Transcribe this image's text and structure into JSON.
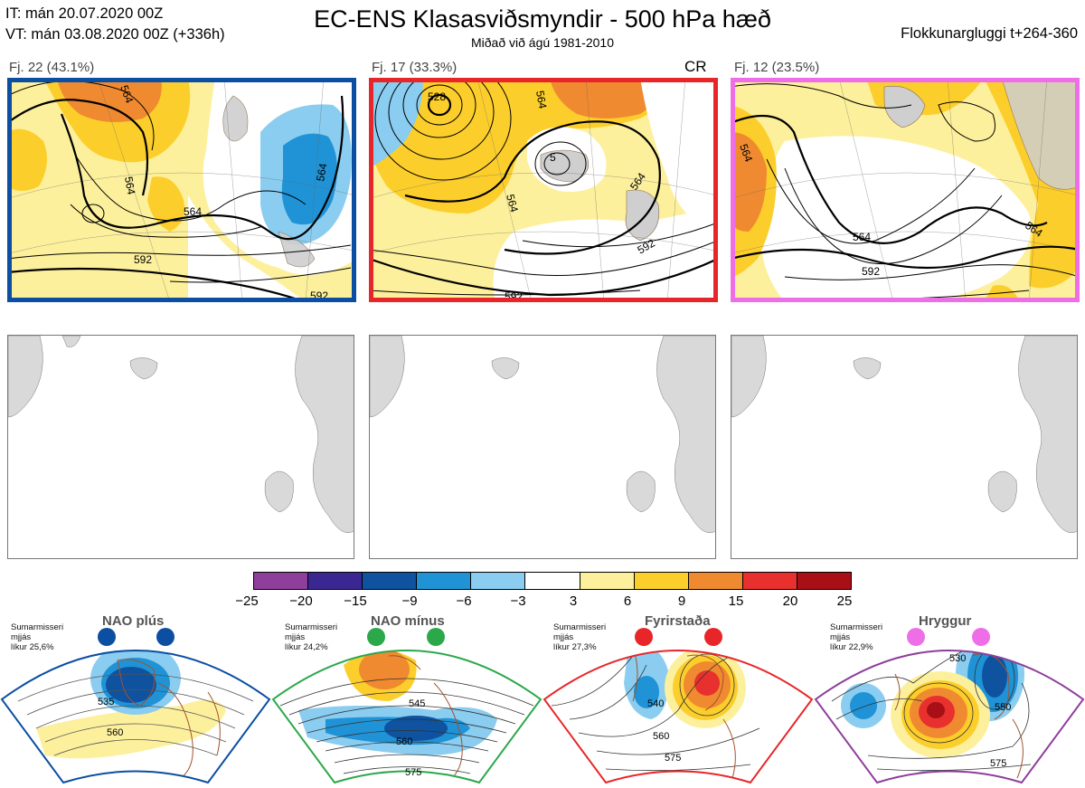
{
  "header": {
    "initial_time": "IT: mán 20.07.2020 00Z",
    "valid_time": "VT: mán 03.08.2020 00Z  (+336h)",
    "title": "EC-ENS Klasasviðsmyndir - 500 hPa hæð",
    "subtitle": "Miðað við ágú 1981-2010",
    "window": "Flokkunargluggi t+264-360"
  },
  "clusters": [
    {
      "label": "Fj. 22 (43.1%)",
      "frame_color": "#0b4ea2",
      "contours": [
        "564",
        "564",
        "564",
        "564",
        "592",
        "592"
      ]
    },
    {
      "label": "Fj. 17 (33.3%)",
      "frame_color": "#e8262a",
      "badge": "CR",
      "contours": [
        "528",
        "564",
        "564",
        "564",
        "592",
        "592",
        "5"
      ]
    },
    {
      "label": "Fj. 12 (23.5%)",
      "frame_color": "#ee6ee8",
      "contours": [
        "564",
        "564",
        "564",
        "592"
      ]
    }
  ],
  "colorbar": {
    "labels": [
      "−25",
      "−20",
      "−15",
      "−9",
      "−6",
      "−3",
      "3",
      "6",
      "9",
      "15",
      "20",
      "25"
    ],
    "colors": [
      "#8e3e9b",
      "#3a2791",
      "#0e52a0",
      "#1f93d6",
      "#8acdf0",
      "#ffffff",
      "#fdf09c",
      "#fcce2b",
      "#f08a30",
      "#e8302e",
      "#a80f16"
    ]
  },
  "regimes": [
    {
      "name": "NAO plús",
      "season": "Sumarmisseri",
      "line2": "mjjás",
      "likelihood": "líkur 25,6%",
      "color": "#0b4ea2",
      "contours": [
        "535",
        "560"
      ]
    },
    {
      "name": "NAO mínus",
      "season": "Sumarmisseri",
      "line2": "mjjás",
      "likelihood": "líkur 24,2%",
      "color": "#2aa84a",
      "contours": [
        "545",
        "560",
        "575"
      ]
    },
    {
      "name": "Fyrirstaða",
      "season": "Sumarmisseri",
      "line2": "mjjás",
      "likelihood": "líkur 27,3%",
      "color": "#e8262a",
      "contours": [
        "540",
        "560",
        "575"
      ]
    },
    {
      "name": "Hryggur",
      "season": "Sumarmisseri",
      "line2": "mjjás",
      "likelihood": "líkur 22,9%",
      "color": "#ee6ee8",
      "contours": [
        "530",
        "550",
        "575"
      ]
    }
  ]
}
